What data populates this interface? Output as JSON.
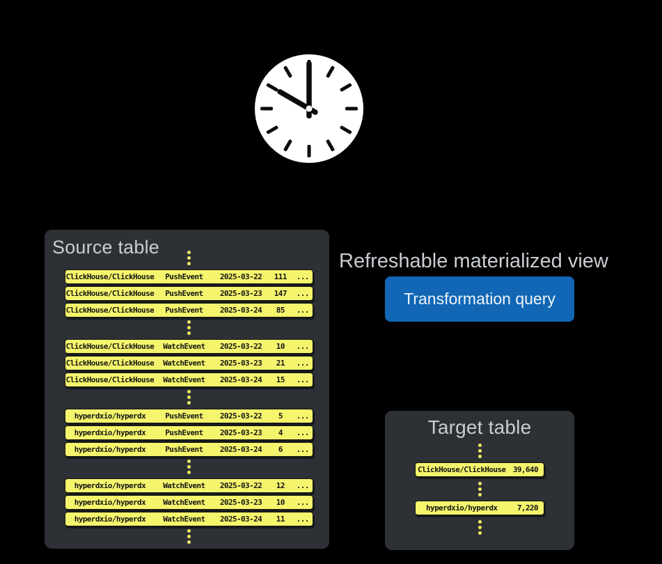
{
  "colors": {
    "background": "#000000",
    "panel": "#2d3035",
    "row_yellow": "#f5f56d",
    "button_blue": "#1167b5",
    "title_gray": "#c9cdd2",
    "clock_face": "#ffffff",
    "clock_hands": "#0a0a0a"
  },
  "clock": {
    "time": "10:00"
  },
  "source_table": {
    "title": "Source table",
    "groups": [
      [
        [
          "ClickHouse/ClickHouse",
          "PushEvent",
          "2025-03-22",
          "111",
          "..."
        ],
        [
          "ClickHouse/ClickHouse",
          "PushEvent",
          "2025-03-23",
          "147",
          "..."
        ],
        [
          "ClickHouse/ClickHouse",
          "PushEvent",
          "2025-03-24",
          "85",
          "..."
        ]
      ],
      [
        [
          "ClickHouse/ClickHouse",
          "WatchEvent",
          "2025-03-22",
          "10",
          "..."
        ],
        [
          "ClickHouse/ClickHouse",
          "WatchEvent",
          "2025-03-23",
          "21",
          "..."
        ],
        [
          "ClickHouse/ClickHouse",
          "WatchEvent",
          "2025-03-24",
          "15",
          "..."
        ]
      ],
      [
        [
          "hyperdxio/hyperdx",
          "PushEvent",
          "2025-03-22",
          "5",
          "..."
        ],
        [
          "hyperdxio/hyperdx",
          "PushEvent",
          "2025-03-23",
          "4",
          "..."
        ],
        [
          "hyperdxio/hyperdx",
          "PushEvent",
          "2025-03-24",
          "6",
          "..."
        ]
      ],
      [
        [
          "hyperdxio/hyperdx",
          "WatchEvent",
          "2025-03-22",
          "12",
          "..."
        ],
        [
          "hyperdxio/hyperdx",
          "WatchEvent",
          "2025-03-23",
          "10",
          "..."
        ],
        [
          "hyperdxio/hyperdx",
          "WatchEvent",
          "2025-03-24",
          "11",
          "..."
        ]
      ]
    ]
  },
  "view": {
    "label": "Refreshable materialized view",
    "button_label": "Transformation query"
  },
  "target_table": {
    "title": "Target table",
    "rows": [
      [
        "ClickHouse/ClickHouse",
        "39,640"
      ],
      [
        "hyperdxio/hyperdx",
        "7,220"
      ]
    ]
  }
}
